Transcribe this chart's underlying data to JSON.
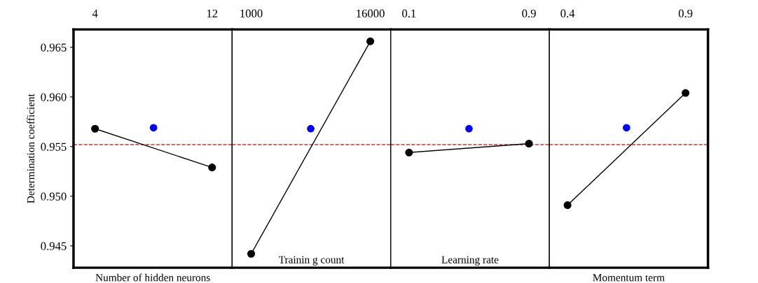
{
  "chart_data": [
    {
      "type": "line",
      "xlabel": "Number of hidden neurons",
      "ylabel": "Determination coefficient",
      "xlim": [
        2.53,
        13.37
      ],
      "xticks": [
        4,
        12
      ],
      "ylim": [
        0.9428,
        0.9668
      ],
      "yticks": [
        0.945,
        {
          "value": 0.95,
          "label": "0.950"
        },
        0.955,
        {
          "value": 0.96,
          "label": "0.960"
        },
        0.965
      ],
      "marker": "circle",
      "grid": false,
      "legend": false,
      "series": [
        {
          "color": "#000000",
          "x": [
            4,
            12
          ],
          "values": [
            0.9568,
            0.9529
          ]
        },
        {
          "type": "scatter",
          "color": "#0000ff",
          "x": [
            8
          ],
          "values": [
            0.9569
          ]
        }
      ],
      "ref_lines": [
        {
          "axis": "y",
          "value": 0.9552,
          "color": "#cc3333",
          "line_style": "dashed"
        }
      ]
    },
    {
      "type": "line",
      "xlabel": "Trainin g count",
      "xlim": [
        -1396,
        18574
      ],
      "xticks": [
        1000,
        16000
      ],
      "ylim": [
        0.9428,
        0.9668
      ],
      "tick_labels": "x",
      "marker": "circle",
      "grid": false,
      "legend": false,
      "series": [
        {
          "color": "#000000",
          "x": [
            1000,
            16000
          ],
          "values": [
            0.9442,
            0.9656
          ]
        },
        {
          "type": "scatter",
          "color": "#0000ff",
          "x": [
            8500
          ],
          "values": [
            0.9568
          ]
        }
      ],
      "ref_lines": [
        {
          "axis": "y",
          "value": 0.9552,
          "color": "#cc3333",
          "line_style": "dashed"
        }
      ]
    },
    {
      "type": "line",
      "xlabel": "Learning rate",
      "xlim": [
        -0.022,
        1.036
      ],
      "xticks": [
        0.1,
        0.9
      ],
      "ylim": [
        0.9428,
        0.9668
      ],
      "tick_labels": "x",
      "marker": "circle",
      "grid": false,
      "legend": false,
      "series": [
        {
          "color": "#000000",
          "x": [
            0.1,
            0.9
          ],
          "values": [
            0.9544,
            0.9553
          ]
        },
        {
          "type": "scatter",
          "color": "#0000ff",
          "x": [
            0.5
          ],
          "values": [
            0.9568
          ]
        }
      ],
      "ref_lines": [
        {
          "axis": "y",
          "value": 0.9552,
          "color": "#cc3333",
          "line_style": "dashed"
        }
      ]
    },
    {
      "type": "line",
      "xlabel": "Momentum term",
      "xlim": [
        0.323,
        0.995
      ],
      "xticks": [
        0.4,
        0.9
      ],
      "ylim": [
        0.9428,
        0.9668
      ],
      "tick_labels": "x",
      "marker": "circle",
      "grid": false,
      "legend": false,
      "series": [
        {
          "color": "#000000",
          "x": [
            0.4,
            0.9
          ],
          "values": [
            0.9491,
            0.9604
          ]
        },
        {
          "type": "scatter",
          "color": "#0000ff",
          "x": [
            0.65
          ],
          "values": [
            0.9569
          ]
        }
      ],
      "ref_lines": [
        {
          "axis": "y",
          "value": 0.9552,
          "color": "#cc3333",
          "line_style": "dashed"
        }
      ]
    }
  ]
}
